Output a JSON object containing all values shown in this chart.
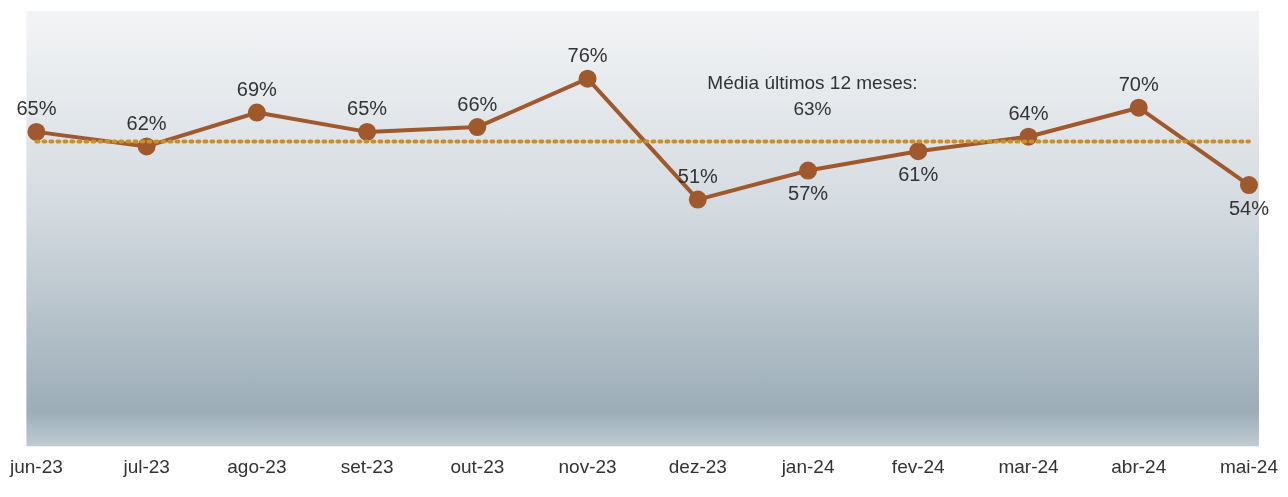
{
  "chart_data": {
    "type": "line",
    "categories": [
      "jun-23",
      "jul-23",
      "ago-23",
      "set-23",
      "out-23",
      "nov-23",
      "dez-23",
      "jan-24",
      "fev-24",
      "mar-24",
      "abr-24",
      "mai-24"
    ],
    "series": [
      {
        "color": "#a0592c",
        "values": [
          65,
          62,
          69,
          65,
          66,
          76,
          51,
          57,
          61,
          64,
          70,
          54
        ],
        "value_labels": [
          "65%",
          "62%",
          "69%",
          "65%",
          "66%",
          "76%",
          "51%",
          "57%",
          "61%",
          "64%",
          "70%",
          "54%"
        ]
      }
    ],
    "tick_labels": "x",
    "marker": "circle",
    "line_style": "solid",
    "grid": false,
    "legend": false,
    "ref_lines": [
      {
        "axis": "y",
        "value": 63,
        "label": "Média últimos 12 meses:\n63%",
        "color": "#c8902a",
        "line_style": "dotted"
      }
    ]
  }
}
